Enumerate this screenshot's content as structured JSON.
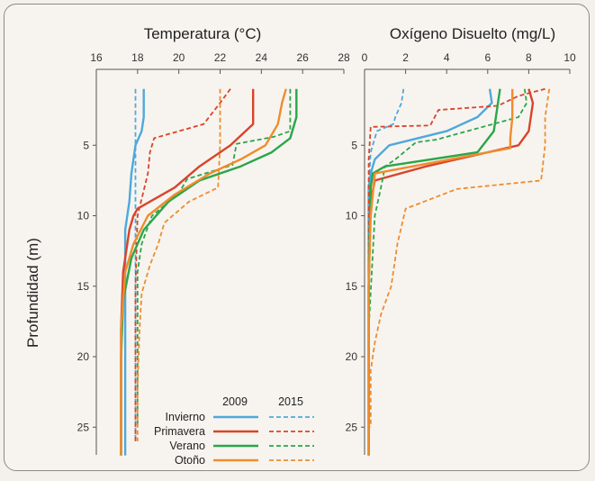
{
  "y_axis_label": "Profundidad (m)",
  "legend": {
    "col_2009": "2009",
    "col_2015": "2015",
    "seasons": [
      "Invierno",
      "Primavera",
      "Verano",
      "Otoño"
    ]
  },
  "colors": {
    "Invierno": "#4fa8dc",
    "Primavera": "#d9442b",
    "Verano": "#2aa64a",
    "Otoño": "#ef8c2d"
  },
  "chart_data": [
    {
      "type": "line",
      "title": "Temperatura (°C)",
      "x_ticks": [
        "16",
        "18",
        "20",
        "22",
        "24",
        "26",
        "28"
      ],
      "y_ticks": [
        "5",
        "10",
        "15",
        "20",
        "25"
      ],
      "xlim": [
        16,
        28
      ],
      "ylim": [
        0,
        27
      ],
      "y_inverted": true,
      "series": [
        {
          "name": "Invierno",
          "year": "2009",
          "x": [
            18.3,
            18.3,
            18.2,
            17.9,
            17.7,
            17.6,
            17.4,
            17.4,
            17.4
          ],
          "y": [
            1,
            3,
            4,
            5,
            7,
            9,
            11,
            15,
            27
          ]
        },
        {
          "name": "Invierno",
          "year": "2015",
          "x": [
            17.9,
            17.9,
            17.9,
            17.9,
            17.9
          ],
          "y": [
            1,
            5,
            10,
            20,
            26
          ]
        },
        {
          "name": "Primavera",
          "year": "2009",
          "x": [
            23.6,
            23.6,
            23.6,
            22.5,
            21.0,
            19.8,
            18.0,
            17.8,
            17.6,
            17.3,
            17.2,
            17.2
          ],
          "y": [
            1,
            2,
            3.5,
            5,
            6.5,
            8,
            9.5,
            10,
            11,
            14,
            18,
            27
          ]
        },
        {
          "name": "Primavera",
          "year": "2015",
          "x": [
            22.5,
            22.0,
            21.2,
            18.8,
            18.6,
            18.5,
            18.0,
            17.9,
            17.9
          ],
          "y": [
            1,
            2,
            3.5,
            4.5,
            5.5,
            7,
            10,
            15,
            26
          ]
        },
        {
          "name": "Verano",
          "year": "2009",
          "x": [
            25.7,
            25.7,
            25.4,
            24.5,
            23.0,
            21.0,
            19.5,
            18.3,
            17.7,
            17.3,
            17.2,
            17.2
          ],
          "y": [
            1,
            3,
            4.5,
            5.5,
            6.5,
            7.5,
            9,
            11,
            13,
            16,
            20,
            27
          ]
        },
        {
          "name": "Verano",
          "year": "2015",
          "x": [
            25.4,
            25.4,
            24.6,
            22.8,
            22.6,
            20.4,
            20.0,
            19.2,
            18.7,
            18.2,
            18.0,
            18.0
          ],
          "y": [
            1,
            4,
            4.4,
            4.9,
            6.4,
            7.4,
            8.4,
            9.4,
            10,
            12,
            14,
            25
          ]
        },
        {
          "name": "Otoño",
          "year": "2009",
          "x": [
            25.2,
            25.0,
            24.8,
            24.2,
            23.0,
            21.5,
            19.8,
            18.5,
            17.8,
            17.4,
            17.2,
            17.2
          ],
          "y": [
            1,
            2,
            3.5,
            5,
            6,
            7,
            8.5,
            10,
            12,
            14,
            18,
            27
          ]
        },
        {
          "name": "Otoño",
          "year": "2015",
          "x": [
            22.0,
            22.0,
            22.0,
            21.9,
            20.5,
            19.3,
            19.0,
            18.6,
            18.2,
            18.1,
            18.0,
            18.0
          ],
          "y": [
            1,
            3,
            5,
            8,
            9,
            10.5,
            12,
            13.5,
            15.5,
            18,
            22,
            26
          ]
        }
      ]
    },
    {
      "type": "line",
      "title": "Oxígeno Disuelto (mg/L)",
      "x_ticks": [
        "0",
        "2",
        "4",
        "6",
        "8",
        "10"
      ],
      "y_ticks": [
        "5",
        "10",
        "15",
        "20",
        "25"
      ],
      "xlim": [
        0,
        10
      ],
      "ylim": [
        0,
        27
      ],
      "y_inverted": true,
      "series": [
        {
          "name": "Invierno",
          "year": "2009",
          "x": [
            6.1,
            6.2,
            5.5,
            4.0,
            1.2,
            0.5,
            0.3,
            0.2,
            0.2,
            0.2
          ],
          "y": [
            1,
            2,
            3,
            4,
            5,
            6,
            7,
            8,
            15,
            27
          ]
        },
        {
          "name": "Invierno",
          "year": "2015",
          "x": [
            1.9,
            1.8,
            1.5,
            1.4,
            0.6,
            0.3,
            0.2,
            0.2,
            0.2
          ],
          "y": [
            1,
            2,
            3,
            3.5,
            4,
            5.5,
            8,
            15,
            26
          ]
        },
        {
          "name": "Primavera",
          "year": "2009",
          "x": [
            8.0,
            8.2,
            8.0,
            7.5,
            3.0,
            0.5,
            0.3,
            0.2,
            0.2
          ],
          "y": [
            1,
            2,
            4,
            5,
            6.5,
            7.5,
            9,
            15,
            27
          ]
        },
        {
          "name": "Primavera",
          "year": "2015",
          "x": [
            8.8,
            7.5,
            6.5,
            3.6,
            3.2,
            0.3,
            0.2,
            0.2,
            0.2
          ],
          "y": [
            1,
            1.5,
            2.2,
            2.5,
            3.6,
            3.7,
            6,
            15,
            25
          ]
        },
        {
          "name": "Verano",
          "year": "2009",
          "x": [
            6.6,
            6.5,
            6.3,
            5.5,
            1.0,
            0.4,
            0.3,
            0.2,
            0.2
          ],
          "y": [
            1,
            2,
            4,
            5.5,
            6.5,
            7,
            8,
            15,
            27
          ]
        },
        {
          "name": "Verano",
          "year": "2015",
          "x": [
            7.8,
            7.9,
            7.5,
            3.5,
            2.5,
            1.5,
            1.0,
            0.8,
            0.5,
            0.2,
            0.2
          ],
          "y": [
            1,
            2,
            3,
            4.6,
            4.8,
            6.0,
            6.5,
            8,
            10,
            18,
            25
          ]
        },
        {
          "name": "Otoño",
          "year": "2009",
          "x": [
            7.2,
            7.2,
            7.1,
            7.1,
            0.5,
            0.3,
            0.2,
            0.2
          ],
          "y": [
            1,
            3,
            4.5,
            5.2,
            7,
            10,
            15,
            27
          ]
        },
        {
          "name": "Otoño",
          "year": "2015",
          "x": [
            9.0,
            8.8,
            8.8,
            8.6,
            4.5,
            2.0,
            1.6,
            1.3,
            0.8,
            0.5,
            0.3,
            0.3
          ],
          "y": [
            1,
            3,
            5,
            7.5,
            8.1,
            9.5,
            12,
            15,
            17,
            19,
            21,
            25
          ]
        }
      ]
    }
  ]
}
